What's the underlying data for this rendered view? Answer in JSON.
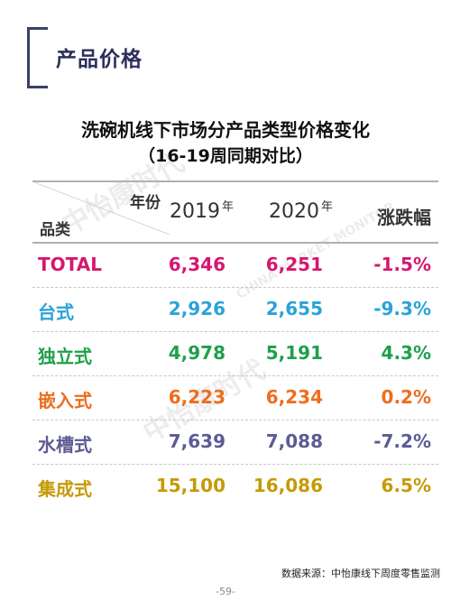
{
  "section_title": "产品价格",
  "title": "洗碗机线下市场分产品类型价格变化",
  "subtitle": "（16-19周同期对比）",
  "watermark": {
    "cn": "中怡康时代",
    "en": "CHINA MARKET MONITOR"
  },
  "table": {
    "corner_top": "年份",
    "corner_bottom": "品类",
    "col_2019": "2019",
    "col_2020": "2020",
    "year_suffix": "年",
    "col_change": "涨跌幅",
    "rows": [
      {
        "category": "TOTAL",
        "v2019": "6,346",
        "v2020": "6,251",
        "change": "-1.5%",
        "color": "#d6176f"
      },
      {
        "category": "台式",
        "v2019": "2,926",
        "v2020": "2,655",
        "change": "-9.3%",
        "color": "#2aa3d9"
      },
      {
        "category": "独立式",
        "v2019": "4,978",
        "v2020": "5,191",
        "change": "4.3%",
        "color": "#1ea04a"
      },
      {
        "category": "嵌入式",
        "v2019": "6,223",
        "v2020": "6,234",
        "change": "0.2%",
        "color": "#ee6d1e"
      },
      {
        "category": "水槽式",
        "v2019": "7,639",
        "v2020": "7,088",
        "change": "-7.2%",
        "color": "#5d5b94"
      },
      {
        "category": "集成式",
        "v2019": "15,100",
        "v2020": "16,086",
        "change": "6.5%",
        "color": "#c59a07"
      }
    ]
  },
  "source": "数据来源：中怡康线下周度零售监测",
  "page_number": "-59-"
}
